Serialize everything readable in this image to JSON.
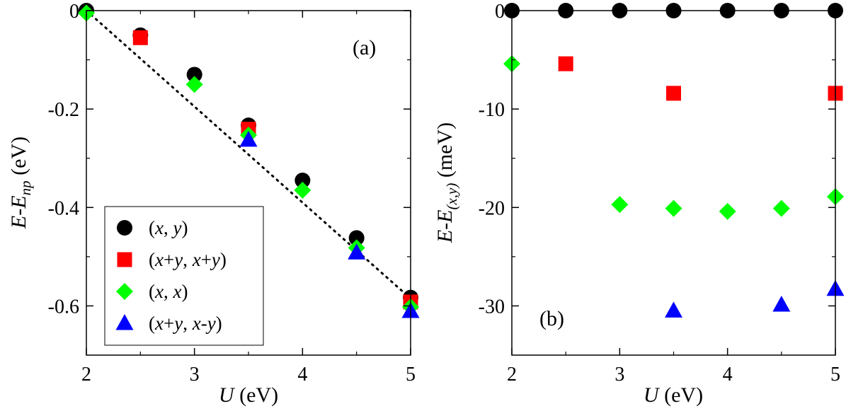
{
  "chart_data": [
    {
      "type": "scatter",
      "panel_label": "(a)",
      "xlabel": "U (eV)",
      "xlabel_parts": {
        "var": "U",
        "unit": " (eV)"
      },
      "ylabel": "E-E_np (eV)",
      "ylabel_parts": {
        "var1": "E",
        "dash": "-",
        "var2": "E",
        "sub": "np",
        "unit": " (eV)"
      },
      "xlim": [
        2,
        5
      ],
      "ylim": [
        -0.7,
        0
      ],
      "xticks": [
        2,
        3,
        4,
        5
      ],
      "xtick_labels": [
        "2",
        "3",
        "4",
        "5"
      ],
      "yticks": [
        0,
        -0.2,
        -0.4,
        -0.6
      ],
      "ytick_labels": [
        "0",
        "-0.2",
        "-0.4",
        "-0.6"
      ],
      "legend_position": "lower-left",
      "series": [
        {
          "name": "(x, y)",
          "marker": "circle",
          "color": "#000000",
          "x": [
            2,
            2.5,
            3,
            3.5,
            4,
            4.5,
            5
          ],
          "y": [
            0,
            -0.05,
            -0.13,
            -0.233,
            -0.345,
            -0.462,
            -0.583
          ]
        },
        {
          "name": "(x+y, x+y)",
          "marker": "square",
          "color": "#ff0000",
          "x": [
            2.5,
            3.5,
            5
          ],
          "y": [
            -0.055,
            -0.241,
            -0.592
          ]
        },
        {
          "name": "(x, x)",
          "marker": "diamond",
          "color": "#00ff00",
          "x": [
            2,
            3,
            3.5,
            4,
            4.5,
            5
          ],
          "y": [
            -0.005,
            -0.15,
            -0.253,
            -0.365,
            -0.482,
            -0.602
          ]
        },
        {
          "name": "(x+y, x-y)",
          "marker": "triangle",
          "color": "#0000ff",
          "x": [
            3.5,
            4.5,
            5
          ],
          "y": [
            -0.263,
            -0.492,
            -0.611
          ]
        }
      ],
      "fit_line": {
        "style": "dotted",
        "color": "#000000",
        "x": [
          2,
          5
        ],
        "y": [
          0,
          -0.585
        ]
      },
      "legend": [
        {
          "marker": "circle",
          "color": "#000000",
          "parts": [
            "(",
            "x",
            ", ",
            "y",
            ")"
          ]
        },
        {
          "marker": "square",
          "color": "#ff0000",
          "parts": [
            "(",
            "x",
            "+",
            "y",
            ", ",
            "x",
            "+",
            "y",
            ")"
          ]
        },
        {
          "marker": "diamond",
          "color": "#00ff00",
          "parts": [
            "(",
            "x",
            ", ",
            "x",
            ")"
          ]
        },
        {
          "marker": "triangle",
          "color": "#0000ff",
          "parts": [
            "(",
            "x",
            "+",
            "y",
            ", ",
            "x",
            "-",
            "y",
            ")"
          ]
        }
      ]
    },
    {
      "type": "scatter",
      "panel_label": "(b)",
      "xlabel": "U (eV)",
      "xlabel_parts": {
        "var": "U",
        "unit": " (eV)"
      },
      "ylabel": "E-E_(x,y) (meV)",
      "ylabel_parts": {
        "var1": "E",
        "dash": "-",
        "var2": "E",
        "sub": "(x,y)",
        "unit": " (meV)"
      },
      "xlim": [
        2,
        5
      ],
      "ylim": [
        -35,
        0
      ],
      "xticks": [
        2,
        3,
        4,
        5
      ],
      "xtick_labels": [
        "2",
        "3",
        "4",
        "5"
      ],
      "yticks": [
        0,
        -10,
        -20,
        -30
      ],
      "ytick_labels": [
        "0",
        "-10",
        "-20",
        "-30"
      ],
      "series": [
        {
          "name": "(x, y)",
          "marker": "circle",
          "color": "#000000",
          "x": [
            2,
            2.5,
            3,
            3.5,
            4,
            4.5,
            5
          ],
          "y": [
            0,
            0,
            0,
            0,
            0,
            0,
            0
          ]
        },
        {
          "name": "(x+y, x+y)",
          "marker": "square",
          "color": "#ff0000",
          "x": [
            2.5,
            3.5,
            5
          ],
          "y": [
            -5.4,
            -8.4,
            -8.4
          ]
        },
        {
          "name": "(x, x)",
          "marker": "diamond",
          "color": "#00ff00",
          "x": [
            2,
            3,
            3.5,
            4,
            4.5,
            5
          ],
          "y": [
            -5.4,
            -19.7,
            -20.1,
            -20.4,
            -20.1,
            -18.9
          ]
        },
        {
          "name": "(x+y, x-y)",
          "marker": "triangle",
          "color": "#0000ff",
          "x": [
            3.5,
            4.5,
            5
          ],
          "y": [
            -30.5,
            -29.9,
            -28.3
          ]
        }
      ]
    }
  ]
}
